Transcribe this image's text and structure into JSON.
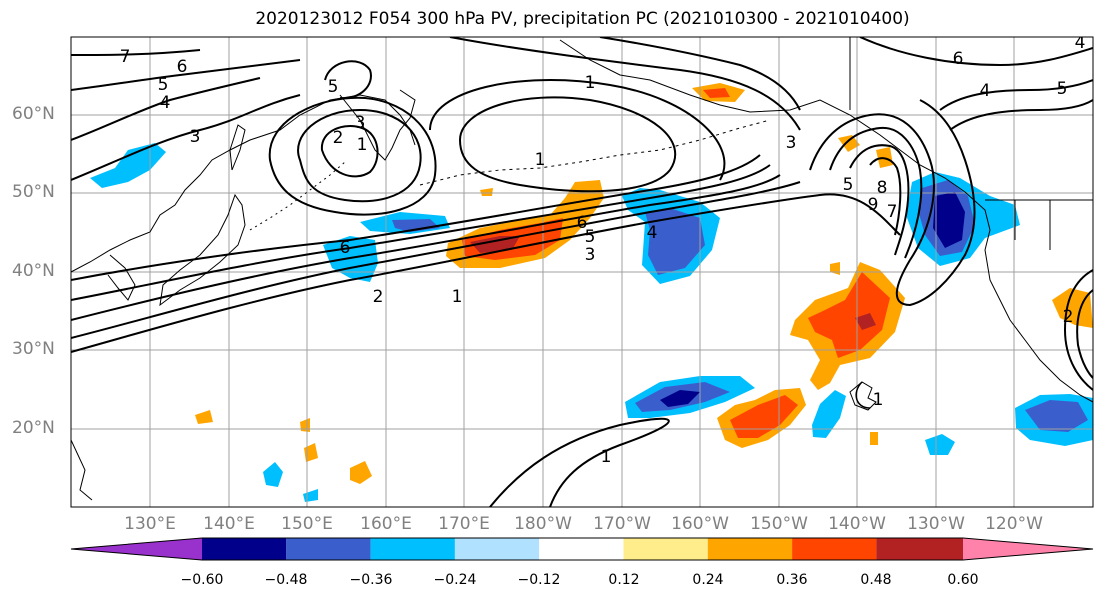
{
  "title": "2020123012 F054 300 hPa PV, precipitation PC (2021010300 - 2021010400)",
  "map": {
    "lat_labels": [
      "60°N",
      "50°N",
      "40°N",
      "30°N",
      "20°N"
    ],
    "lon_labels": [
      "130°E",
      "140°E",
      "150°E",
      "160°E",
      "170°E",
      "180°W",
      "170°W",
      "160°W",
      "150°W",
      "140°W",
      "130°W",
      "120°W"
    ],
    "contour_labels": [
      "7",
      "6",
      "5",
      "4",
      "3",
      "2",
      "1",
      "5",
      "1",
      "1",
      "3",
      "6",
      "5",
      "4",
      "3",
      "2",
      "1",
      "6",
      "7",
      "8",
      "9",
      "5",
      "4",
      "5",
      "6",
      "3",
      "1",
      "1",
      "2",
      "4"
    ]
  },
  "colorbar": {
    "labels": [
      "−0.60",
      "−0.48",
      "−0.36",
      "−0.24",
      "−0.12",
      "0.12",
      "0.24",
      "0.36",
      "0.48",
      "0.60"
    ],
    "colors": [
      "#9932cc",
      "#00008b",
      "#3a5fcd",
      "#00bfff",
      "#b0e2ff",
      "#ffffff",
      "#ffec8b",
      "#ffa500",
      "#ff4500",
      "#b22222",
      "#ff82ab"
    ]
  },
  "colors": {
    "land_outline": "#000000",
    "pv_contour": "#000000",
    "grid": "#a0a0a0"
  }
}
